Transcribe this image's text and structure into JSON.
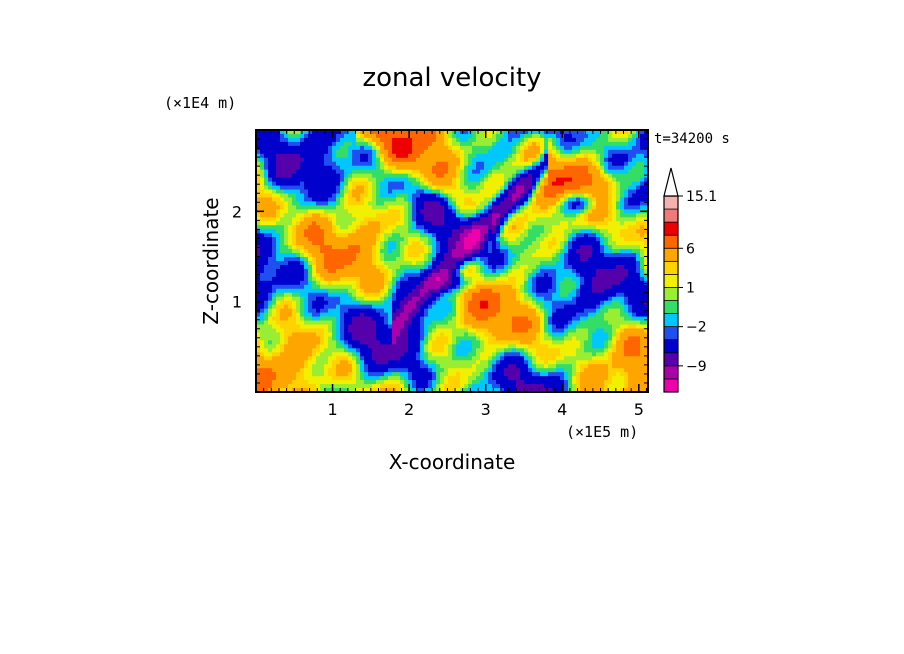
{
  "chart_data": {
    "type": "heatmap",
    "title": "zonal velocity",
    "xlabel": "X-coordinate",
    "ylabel": "Z-coordinate",
    "x_scale_label": "(×1E5 m)",
    "y_scale_label": "(×1E4 m)",
    "time_label": "t=34200 s",
    "xlim": [
      0,
      5.12
    ],
    "ylim": [
      0,
      2.9
    ],
    "x_ticks": [
      "1",
      "2",
      "3",
      "4",
      "5"
    ],
    "x_tick_values": [
      1,
      2,
      3,
      4,
      5
    ],
    "y_ticks": [
      "1",
      "2"
    ],
    "y_tick_values": [
      1,
      2
    ],
    "colorbar": {
      "labels": [
        "15.1",
        "6",
        "1",
        "−2",
        "−9"
      ],
      "label_levels": [
        15.1,
        6,
        1,
        -2,
        -9
      ],
      "levels": [
        -15,
        -12,
        -9,
        -6,
        -3,
        -2,
        -1,
        0,
        1,
        2,
        3,
        6,
        9,
        12,
        15.1
      ],
      "colors": [
        "#ee00aa",
        "#aa00aa",
        "#5500aa",
        "#0000cc",
        "#1f4ff0",
        "#00c8ff",
        "#33dd66",
        "#99ee33",
        "#f0f000",
        "#ffd200",
        "#ffa500",
        "#ff6600",
        "#ee0000",
        "#f07a7a",
        "#f5b0b0"
      ],
      "extend": "max"
    },
    "field_description_colors": {
      "background": "#33dd66"
    }
  }
}
